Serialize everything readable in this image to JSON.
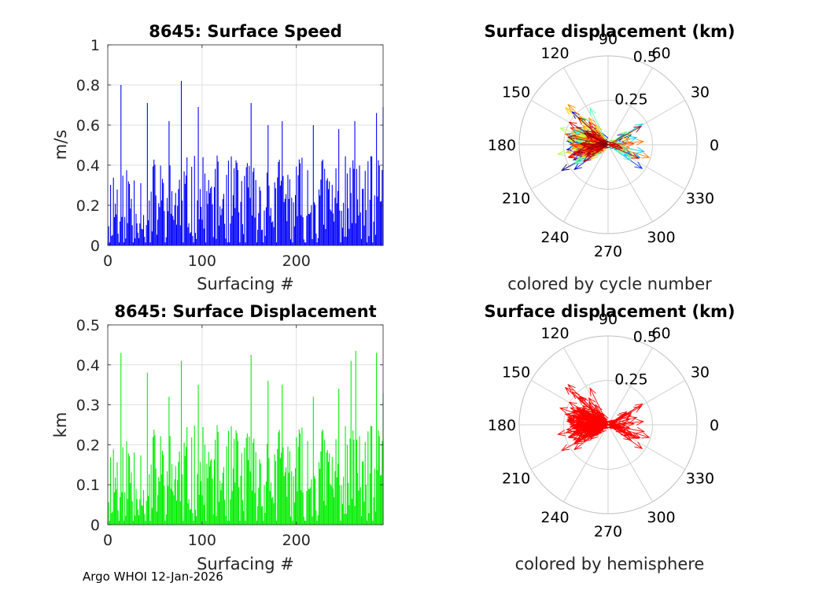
{
  "footer": "Argo WHOI 12-Jan-2026",
  "chart_data": [
    {
      "id": "speed",
      "type": "bar",
      "title": "8645: Surface Speed",
      "xlabel": "Surfacing #",
      "ylabel": "m/s",
      "xlim": [
        0,
        292
      ],
      "ylim": [
        0,
        1
      ],
      "xticks": [
        0,
        100,
        200
      ],
      "yticks": [
        0,
        0.2,
        0.4,
        0.6,
        0.8,
        1
      ],
      "ytick_labels": [
        "0",
        "0.2",
        "0.4",
        "0.6",
        "0.8",
        "1"
      ],
      "grid": true,
      "bar_color": "#0000ff",
      "peaks": [
        [
          14,
          0.8
        ],
        [
          42,
          0.71
        ],
        [
          65,
          0.62
        ],
        [
          78,
          0.82
        ],
        [
          96,
          0.69
        ],
        [
          152,
          0.71
        ],
        [
          170,
          0.6
        ],
        [
          185,
          0.62
        ],
        [
          218,
          0.6
        ],
        [
          245,
          0.58
        ],
        [
          262,
          0.62
        ],
        [
          285,
          0.66
        ],
        [
          292,
          0.69
        ]
      ],
      "typical_range": [
        0.03,
        0.45
      ],
      "n": 292
    },
    {
      "id": "displacement",
      "type": "bar",
      "title": "8645: Surface Displacement",
      "xlabel": "Surfacing #",
      "ylabel": "km",
      "xlim": [
        0,
        292
      ],
      "ylim": [
        0,
        0.5
      ],
      "xticks": [
        0,
        100,
        200
      ],
      "yticks": [
        0,
        0.1,
        0.2,
        0.3,
        0.4,
        0.5
      ],
      "ytick_labels": [
        "0",
        "0.1",
        "0.2",
        "0.3",
        "0.4",
        "0.5"
      ],
      "grid": true,
      "bar_color": "#00ee00",
      "peaks": [
        [
          14,
          0.43
        ],
        [
          42,
          0.38
        ],
        [
          65,
          0.32
        ],
        [
          78,
          0.41
        ],
        [
          96,
          0.35
        ],
        [
          152,
          0.425
        ],
        [
          170,
          0.36
        ],
        [
          185,
          0.35
        ],
        [
          218,
          0.32
        ],
        [
          245,
          0.34
        ],
        [
          258,
          0.41
        ],
        [
          263,
          0.435
        ],
        [
          285,
          0.43
        ],
        [
          292,
          0.33
        ]
      ],
      "typical_range": [
        0.02,
        0.25
      ],
      "n": 292
    },
    {
      "id": "polar_cycle",
      "type": "polar-compass",
      "title": "Surface displacement (km)",
      "caption": "colored by cycle number",
      "rmax": 0.5,
      "rticks": [
        0.25,
        0.5
      ],
      "rtick_labels": [
        "0.25",
        "0.5"
      ],
      "angle_ticks": [
        0,
        30,
        60,
        90,
        120,
        150,
        180,
        210,
        240,
        270,
        300,
        330
      ],
      "color_scheme": "jet by cycle number",
      "n": 292
    },
    {
      "id": "polar_hemi",
      "type": "polar-compass",
      "title": "Surface displacement (km)",
      "caption": "colored by hemisphere",
      "rmax": 0.5,
      "rticks": [
        0.25,
        0.5
      ],
      "rtick_labels": [
        "0.25",
        "0.5"
      ],
      "angle_ticks": [
        0,
        30,
        60,
        90,
        120,
        150,
        180,
        210,
        240,
        270,
        300,
        330
      ],
      "arrow_color": "#ff0000",
      "n": 292
    }
  ]
}
